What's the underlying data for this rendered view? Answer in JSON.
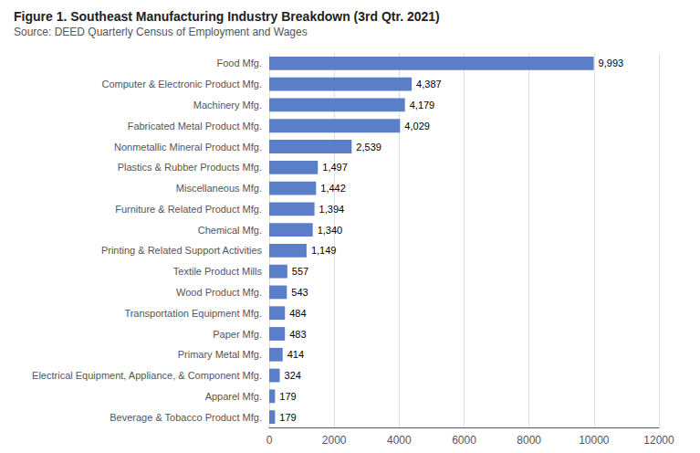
{
  "chart_data": {
    "type": "bar",
    "orientation": "horizontal",
    "title": "Figure 1. Southeast Manufacturing Industry Breakdown (3rd Qtr. 2021)",
    "subtitle": "Source: DEED Quarterly Census of Employment and Wages",
    "categories": [
      "Beverage & Tobacco Product Mfg.",
      "Apparel Mfg.",
      "Electrical Equipment, Appliance, & Component Mfg.",
      "Primary Metal Mfg.",
      "Paper Mfg.",
      "Transportation Equipment Mfg.",
      "Wood Product Mfg.",
      "Textile Product Mills",
      "Printing & Related Support Activities",
      "Chemical Mfg.",
      "Furniture & Related Product Mfg.",
      "Miscellaneous Mfg.",
      "Plastics & Rubber Products Mfg.",
      "Nonmetallic Mineral Product Mfg.",
      "Fabricated Metal Product Mfg.",
      "Machinery Mfg.",
      "Computer & Electronic Product Mfg.",
      "Food Mfg."
    ],
    "values": [
      179,
      179,
      324,
      414,
      483,
      484,
      543,
      557,
      1149,
      1340,
      1394,
      1442,
      1497,
      2539,
      4029,
      4179,
      4387,
      9993
    ],
    "value_labels": [
      "179",
      "179",
      "324",
      "414",
      "483",
      "484",
      "543",
      "557",
      "1,149",
      "1,340",
      "1,394",
      "1,442",
      "1,497",
      "2,539",
      "4,029",
      "4,179",
      "4,387",
      "9,993"
    ],
    "data_labels": true,
    "color": "#5b7ec9",
    "xlim": [
      0,
      12000
    ],
    "xticks": [
      0,
      2000,
      4000,
      6000,
      8000,
      10000,
      12000
    ],
    "grid": true
  }
}
